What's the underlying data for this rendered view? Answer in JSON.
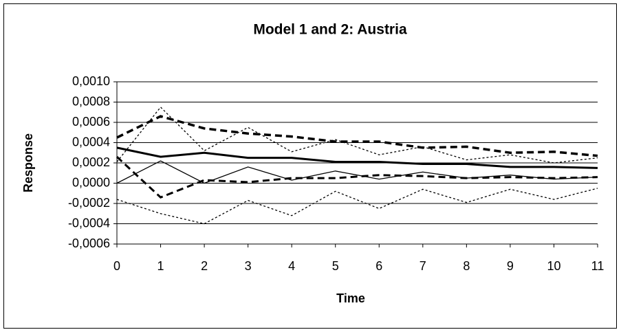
{
  "chart_data": {
    "type": "line",
    "title": "Model 1 and 2: Austria",
    "xlabel": "Time",
    "ylabel": "Response",
    "x": [
      0,
      1,
      2,
      3,
      4,
      5,
      6,
      7,
      8,
      9,
      10,
      11
    ],
    "xlim": [
      0,
      11
    ],
    "xticks": [
      0,
      1,
      2,
      3,
      4,
      5,
      6,
      7,
      8,
      9,
      10,
      11
    ],
    "ylim": [
      -0.0006,
      0.001
    ],
    "yticks": [
      {
        "value": -0.0006,
        "label": "-0,0006"
      },
      {
        "value": -0.0004,
        "label": "-0,0004"
      },
      {
        "value": -0.0002,
        "label": "-0,0002"
      },
      {
        "value": 0,
        "label": "0,0000"
      },
      {
        "value": 0.0002,
        "label": "0,0002"
      },
      {
        "value": 0.0004,
        "label": "0,0004"
      },
      {
        "value": 0.0006,
        "label": "0,0006"
      },
      {
        "value": 0.0008,
        "label": "0,0008"
      },
      {
        "value": 0.001,
        "label": "0,0010"
      }
    ],
    "grid": true,
    "series": [
      {
        "color": "#000000",
        "style": "solid",
        "width": 3,
        "values": [
          0.00035,
          0.00026,
          0.0003,
          0.00025,
          0.00025,
          0.00021,
          0.00021,
          0.00019,
          0.00019,
          0.00016,
          0.00016,
          0.00015
        ]
      },
      {
        "color": "#000000",
        "style": "solid",
        "width": 1.3,
        "values": [
          0,
          0.00022,
          0,
          0.00016,
          3e-05,
          0.00012,
          4e-05,
          0.00011,
          5e-05,
          8e-05,
          4e-05,
          6e-05
        ]
      },
      {
        "color": "#000000",
        "style": "dashed",
        "width": 3.5,
        "values": [
          0.00045,
          0.00066,
          0.00054,
          0.00049,
          0.00046,
          0.00041,
          0.00041,
          0.00035,
          0.00036,
          0.0003,
          0.00031,
          0.00027
        ]
      },
      {
        "color": "#000000",
        "style": "dashed",
        "width": 3,
        "values": [
          0.00026,
          -0.00014,
          3e-05,
          1e-05,
          5e-05,
          5e-05,
          8e-05,
          7e-05,
          5e-05,
          6e-05,
          5e-05,
          6e-05
        ]
      },
      {
        "color": "#000000",
        "style": "dotted",
        "width": 1.3,
        "values": [
          0.00021,
          0.00075,
          0.00032,
          0.00055,
          0.00031,
          0.00043,
          0.00028,
          0.00036,
          0.00023,
          0.00028,
          0.0002,
          0.00025
        ]
      },
      {
        "color": "#000000",
        "style": "dotted",
        "width": 1.3,
        "values": [
          -0.00016,
          -0.0003,
          -0.0004,
          -0.00017,
          -0.00032,
          -8e-05,
          -0.00025,
          -6e-05,
          -0.00019,
          -6e-05,
          -0.00016,
          -5e-05
        ]
      }
    ]
  }
}
